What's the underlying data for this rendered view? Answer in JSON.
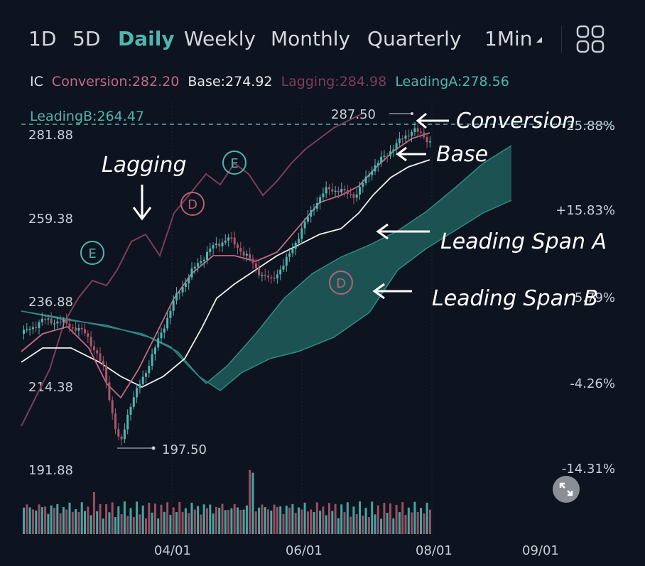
{
  "toolbar": {
    "tabs": [
      {
        "label": "1D"
      },
      {
        "label": "5D"
      },
      {
        "label": "Daily",
        "active": true
      },
      {
        "label": "Weekly"
      },
      {
        "label": "Monthly"
      },
      {
        "label": "Quarterly"
      },
      {
        "label": "1Min"
      }
    ],
    "layout_icon": "grid-4-icon"
  },
  "indicator": {
    "name": "IC",
    "conversion": "Conversion:282.20",
    "base": "Base:274.92",
    "lagging": "Lagging:284.98",
    "leading_a": "LeadingA:278.56",
    "leading_b": "LeadingB:264.47"
  },
  "colors": {
    "background": "#0e1320",
    "up": "#4fb6ad",
    "down": "#a8566c",
    "conversion": "#c06a83",
    "base": "#f0f0f0",
    "lagging": "#7a3f57",
    "cloud": "#1f5f5c"
  },
  "annotations": {
    "lagging": "Lagging",
    "conversion": "Conversion",
    "base": "Base",
    "leading_a": "Leading Span A",
    "leading_b": "Leading Span B"
  },
  "markers": {
    "high": "287.50",
    "low": "197.50",
    "events": [
      "E",
      "D",
      "E",
      "D"
    ]
  },
  "chart_data": {
    "type": "candlestick",
    "x_ticks": [
      "04/01",
      "06/01",
      "08/01",
      "09/01"
    ],
    "y_ticks": [
      "281.88",
      "259.38",
      "236.88",
      "214.38",
      "191.88"
    ],
    "y_pct_ticks": [
      "25.88%",
      "+15.83%",
      "5.79%",
      "-4.26%",
      "-14.31%"
    ],
    "ylim": [
      191.88,
      287.5
    ],
    "high": 287.5,
    "low": 197.5,
    "last_values": {
      "conversion": 282.2,
      "base": 274.92,
      "lagging": 284.98,
      "leading_a": 278.56,
      "leading_b": 264.47
    },
    "volume": true
  }
}
